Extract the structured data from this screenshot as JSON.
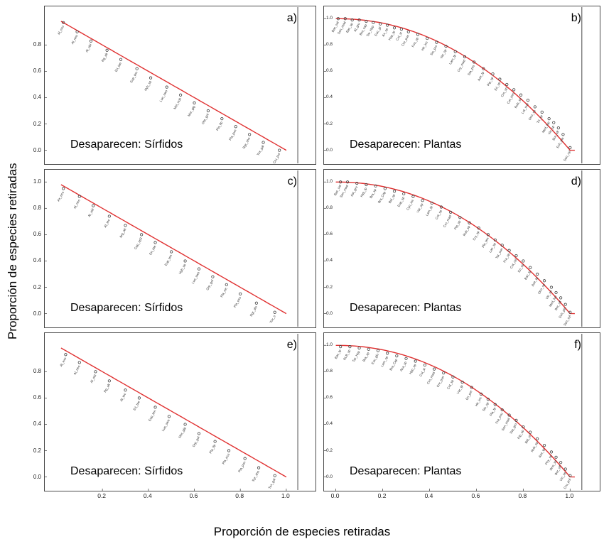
{
  "figure": {
    "x_axis_label": "Proporción de especies retiradas",
    "y_axis_label": "Proporción de especies retiradas",
    "accent_color": "#e03131",
    "point_color": "#3f3f3f",
    "label_color": "#333333",
    "frame_color": "#4a4a4a"
  },
  "chart_data": [
    {
      "type": "scatter",
      "panel": "a)",
      "caption": "Desaparecen: Sírfidos",
      "curve": {
        "exponent": 1.0,
        "x0": 0.02,
        "x1": 1.0
      },
      "xlim": [
        -0.02,
        1.09
      ],
      "ylim": [
        -0.04,
        1.05
      ],
      "right_line_x": 1.05,
      "y_ticks": [
        0.0,
        0.2,
        0.4,
        0.6,
        0.8
      ],
      "y_ticks_side": "outside",
      "x_ticks": [],
      "points": [
        [
          0.03,
          0.97,
          "Al_exo"
        ],
        [
          0.09,
          0.9,
          "Al_neo"
        ],
        [
          0.15,
          0.83,
          "Al_obl"
        ],
        [
          0.22,
          0.76,
          "Rg_alt"
        ],
        [
          0.28,
          0.69,
          "Eri_tae"
        ],
        [
          0.35,
          0.62,
          "Eup_ten"
        ],
        [
          0.41,
          0.55,
          "Hyb_sp"
        ],
        [
          0.48,
          0.48,
          "Lue_swo"
        ],
        [
          0.54,
          0.42,
          "Mel_nub"
        ],
        [
          0.6,
          0.36,
          "Mer_gig"
        ],
        [
          0.66,
          0.3,
          "Orp_gol"
        ],
        [
          0.72,
          0.24,
          "Pla_fip"
        ],
        [
          0.78,
          0.18,
          "Pla_pun"
        ],
        [
          0.84,
          0.12,
          "Rgr_sho"
        ],
        [
          0.9,
          0.06,
          "Tox_gal"
        ],
        [
          0.97,
          0.0,
          "Cru_pul"
        ]
      ]
    },
    {
      "type": "scatter",
      "panel": "b)",
      "caption": "Desaparecen: Plantas",
      "curve": {
        "exponent": 2.1,
        "x0": 0.0,
        "x1": 1.02
      },
      "xlim": [
        -0.02,
        1.09
      ],
      "ylim": [
        -0.04,
        1.05
      ],
      "right_line_x": 1.05,
      "y_ticks": [
        0.0,
        0.2,
        0.4,
        0.6,
        0.8,
        1.0
      ],
      "y_ticks_side": "inside",
      "x_ticks": [],
      "points": [
        [
          0.01,
          1.0,
          "Bac_sal"
        ],
        [
          0.04,
          1.0,
          "Sen_mad"
        ],
        [
          0.07,
          0.99,
          "Bac_sp"
        ],
        [
          0.1,
          0.99,
          "Al_gru"
        ],
        [
          0.13,
          0.98,
          "Bra_cap"
        ],
        [
          0.16,
          0.97,
          "Tar_Hyp"
        ],
        [
          0.19,
          0.96,
          "Euc_gl"
        ],
        [
          0.22,
          0.95,
          "Ax_sp"
        ],
        [
          0.25,
          0.93,
          "Hyp_tp"
        ],
        [
          0.28,
          0.92,
          "Col_st"
        ],
        [
          0.31,
          0.9,
          "Cre_pun"
        ],
        [
          0.35,
          0.88,
          "Fos_sp"
        ],
        [
          0.39,
          0.85,
          "Hir_inc"
        ],
        [
          0.43,
          0.82,
          "Sis_pro"
        ],
        [
          0.47,
          0.79,
          "Var_sp"
        ],
        [
          0.51,
          0.75,
          "Lam_tp"
        ],
        [
          0.55,
          0.71,
          "Cry_mad"
        ],
        [
          0.59,
          0.67,
          "Sta_pro"
        ],
        [
          0.63,
          0.62,
          "Aze_tp"
        ],
        [
          0.67,
          0.58,
          "Pip_sp"
        ],
        [
          0.7,
          0.54,
          "Eri_sp"
        ],
        [
          0.73,
          0.5,
          "Cro_sp"
        ],
        [
          0.76,
          0.46,
          "Cot_tom"
        ],
        [
          0.79,
          0.42,
          "Rub_sp"
        ],
        [
          0.82,
          0.38,
          "Lot_sub"
        ],
        [
          0.85,
          0.33,
          "Ono_sp"
        ],
        [
          0.88,
          0.29,
          "Tri_sp"
        ],
        [
          0.91,
          0.24,
          "Med_lup"
        ],
        [
          0.93,
          0.21,
          "Vic_sp"
        ],
        [
          0.95,
          0.17,
          "Bor_off"
        ],
        [
          0.97,
          0.12,
          "Ech_pla"
        ],
        [
          1.0,
          0.02,
          "Sen_cyl"
        ]
      ]
    },
    {
      "type": "scatter",
      "panel": "c)",
      "caption": "Desaparecen: Sírfidos",
      "curve": {
        "exponent": 1.0,
        "x0": 0.02,
        "x1": 1.0
      },
      "xlim": [
        -0.02,
        1.09
      ],
      "ylim": [
        -0.04,
        1.05
      ],
      "right_line_x": 1.05,
      "y_ticks": [
        0.0,
        0.2,
        0.4,
        0.6,
        0.8,
        1.0
      ],
      "y_ticks_side": "outside",
      "x_ticks": [],
      "points": [
        [
          0.03,
          0.95,
          "Ax_eco"
        ],
        [
          0.1,
          0.89,
          "Al_neo"
        ],
        [
          0.16,
          0.82,
          "Al_obl"
        ],
        [
          0.23,
          0.74,
          "Al_tec"
        ],
        [
          0.3,
          0.67,
          "Arg_alt"
        ],
        [
          0.37,
          0.6,
          "Cap_sp3"
        ],
        [
          0.43,
          0.54,
          "Eri_tae"
        ],
        [
          0.5,
          0.47,
          "Eup_ten"
        ],
        [
          0.56,
          0.4,
          "Hyb_sp"
        ],
        [
          0.62,
          0.34,
          "Lue_swo"
        ],
        [
          0.68,
          0.28,
          "Orp_gol"
        ],
        [
          0.74,
          0.22,
          "Pla_nic"
        ],
        [
          0.8,
          0.15,
          "Pla_exu"
        ],
        [
          0.87,
          0.08,
          "Rgr_alu"
        ],
        [
          0.95,
          0.01,
          "Tox_s"
        ]
      ]
    },
    {
      "type": "scatter",
      "panel": "d)",
      "caption": "Desaparecen: Plantas",
      "curve": {
        "exponent": 2.1,
        "x0": 0.0,
        "x1": 1.02
      },
      "xlim": [
        -0.02,
        1.09
      ],
      "ylim": [
        -0.04,
        1.05
      ],
      "right_line_x": 1.05,
      "y_ticks": [
        0.0,
        0.2,
        0.4,
        0.6,
        0.8,
        1.0
      ],
      "y_ticks_side": "inside",
      "x_ticks": [],
      "points": [
        [
          0.02,
          1.0,
          "Bac_sal"
        ],
        [
          0.05,
          1.0,
          "Sen_mad"
        ],
        [
          0.09,
          0.99,
          "Ast_gru"
        ],
        [
          0.13,
          0.98,
          "Hyp_tp"
        ],
        [
          0.17,
          0.97,
          "Bra_sp"
        ],
        [
          0.21,
          0.95,
          "Bra_Cap"
        ],
        [
          0.25,
          0.93,
          "Bid_sp"
        ],
        [
          0.29,
          0.91,
          "Eup_sp"
        ],
        [
          0.33,
          0.89,
          "Cyn_inc"
        ],
        [
          0.37,
          0.86,
          "Var_sp"
        ],
        [
          0.41,
          0.84,
          "Lam_tp"
        ],
        [
          0.45,
          0.81,
          "Cot_sp"
        ],
        [
          0.49,
          0.77,
          "Cro_mad"
        ],
        [
          0.53,
          0.73,
          "Pip_sp"
        ],
        [
          0.57,
          0.69,
          "Rub_sp"
        ],
        [
          0.61,
          0.65,
          "Cry_sp"
        ],
        [
          0.65,
          0.6,
          "Pla_ten"
        ],
        [
          0.68,
          0.56,
          "Lan_sp"
        ],
        [
          0.71,
          0.52,
          "Tar_sun"
        ],
        [
          0.74,
          0.48,
          "Fra_sp"
        ],
        [
          0.77,
          0.44,
          "Cot_cyl"
        ],
        [
          0.8,
          0.4,
          "Eri_sp"
        ],
        [
          0.83,
          0.35,
          "Bac_tp"
        ],
        [
          0.86,
          0.3,
          "Aze_tp"
        ],
        [
          0.89,
          0.25,
          "Ono_sp"
        ],
        [
          0.92,
          0.2,
          "Vic_sp"
        ],
        [
          0.94,
          0.16,
          "Med_lup"
        ],
        [
          0.96,
          0.12,
          "Bor_off"
        ],
        [
          0.98,
          0.07,
          "Ech_pla"
        ],
        [
          1.0,
          0.01,
          "Sen_cyl"
        ]
      ]
    },
    {
      "type": "scatter",
      "panel": "e)",
      "caption": "Desaparecen: Sírfidos",
      "curve": {
        "exponent": 1.0,
        "x0": 0.02,
        "x1": 1.0
      },
      "xlim": [
        -0.02,
        1.09
      ],
      "ylim": [
        -0.04,
        1.05
      ],
      "right_line_x": 1.05,
      "y_ticks": [
        0.0,
        0.2,
        0.4,
        0.6,
        0.8
      ],
      "y_ticks_side": "outside",
      "x_ticks": [
        0.2,
        0.4,
        0.6,
        0.8,
        1.0
      ],
      "points": [
        [
          0.04,
          0.93,
          "Al_exo"
        ],
        [
          0.1,
          0.87,
          "Al_neo"
        ],
        [
          0.17,
          0.8,
          "Al_obl"
        ],
        [
          0.23,
          0.73,
          "Rg_alt"
        ],
        [
          0.3,
          0.66,
          "Al_tec"
        ],
        [
          0.36,
          0.6,
          "Eri_tae"
        ],
        [
          0.43,
          0.53,
          "Eup_ten"
        ],
        [
          0.49,
          0.46,
          "Lue_swo"
        ],
        [
          0.56,
          0.4,
          "Mer_gig"
        ],
        [
          0.62,
          0.33,
          "Orp_gol"
        ],
        [
          0.69,
          0.27,
          "Pla_fip"
        ],
        [
          0.75,
          0.2,
          "Pla_ecu"
        ],
        [
          0.82,
          0.14,
          "Pla_pun"
        ],
        [
          0.88,
          0.07,
          "Syr_sho"
        ],
        [
          0.95,
          0.01,
          "Tox_gal"
        ]
      ]
    },
    {
      "type": "scatter",
      "panel": "f)",
      "caption": "Desaparecen: Plantas",
      "curve": {
        "exponent": 2.1,
        "x0": 0.0,
        "x1": 1.02
      },
      "xlim": [
        -0.02,
        1.09
      ],
      "ylim": [
        -0.04,
        1.05
      ],
      "right_line_x": 1.05,
      "y_ticks": [
        0.0,
        0.2,
        0.4,
        0.6,
        0.8,
        1.0
      ],
      "y_ticks_side": "inside",
      "x_ticks": [
        0.0,
        0.2,
        0.4,
        0.6,
        0.8,
        1.0
      ],
      "points": [
        [
          0.02,
          0.99,
          "Bac_tp"
        ],
        [
          0.06,
          0.99,
          "RLB_sp"
        ],
        [
          0.1,
          0.98,
          "Tar_Hyp"
        ],
        [
          0.14,
          0.97,
          "Bra_sp"
        ],
        [
          0.18,
          0.96,
          "Euc_glo"
        ],
        [
          0.22,
          0.94,
          "Lam_sp"
        ],
        [
          0.26,
          0.92,
          "Bra_Cap"
        ],
        [
          0.3,
          0.9,
          "Aza_sp"
        ],
        [
          0.34,
          0.88,
          "Hyp_sp"
        ],
        [
          0.38,
          0.85,
          "Col_st"
        ],
        [
          0.42,
          0.82,
          "Cro_mad"
        ],
        [
          0.46,
          0.79,
          "Cre_pun"
        ],
        [
          0.5,
          0.76,
          "Cot_sp"
        ],
        [
          0.54,
          0.72,
          "Var_tp"
        ],
        [
          0.58,
          0.68,
          "Eri_per"
        ],
        [
          0.62,
          0.63,
          "Hir_inc"
        ],
        [
          0.65,
          0.59,
          "Sis_sp"
        ],
        [
          0.68,
          0.55,
          "Pla_tp"
        ],
        [
          0.71,
          0.51,
          "Fra_exu"
        ],
        [
          0.74,
          0.47,
          "Sen_mad"
        ],
        [
          0.77,
          0.43,
          "Sta_gro"
        ],
        [
          0.8,
          0.38,
          "Pip_sp"
        ],
        [
          0.83,
          0.34,
          "Bid_sf"
        ],
        [
          0.86,
          0.29,
          "Rub_sp"
        ],
        [
          0.89,
          0.24,
          "Aze_tp"
        ],
        [
          0.92,
          0.19,
          "Phy_sp"
        ],
        [
          0.94,
          0.15,
          "Ono_sp"
        ],
        [
          0.96,
          0.11,
          "Bor_off"
        ],
        [
          0.98,
          0.06,
          "Vic_sp"
        ],
        [
          1.0,
          0.01,
          "Cru_pul"
        ]
      ]
    }
  ]
}
